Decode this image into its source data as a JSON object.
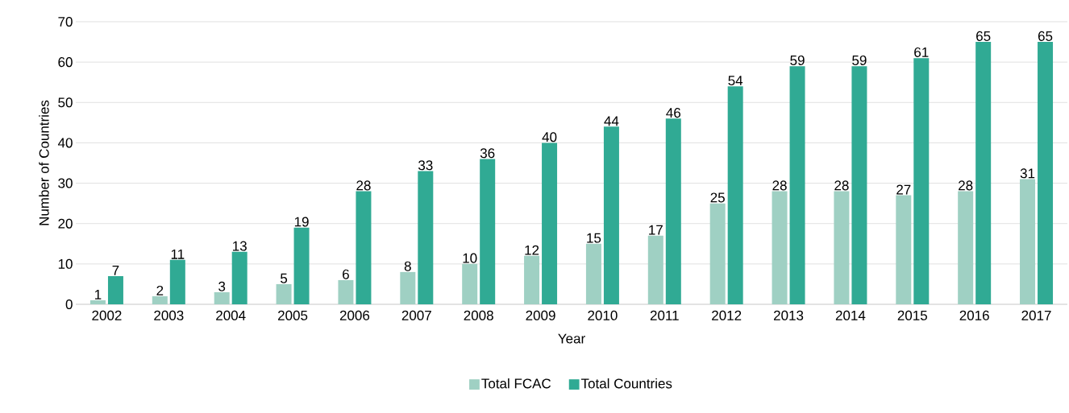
{
  "chart_data": {
    "type": "bar",
    "xlabel": "Year",
    "ylabel": "Number of Countries",
    "categories": [
      "2002",
      "2003",
      "2004",
      "2005",
      "2006",
      "2007",
      "2008",
      "2009",
      "2010",
      "2011",
      "2012",
      "2013",
      "2014",
      "2015",
      "2016",
      "2017"
    ],
    "series": [
      {
        "name": "Total FCAC",
        "color": "#9fd0c3",
        "values": [
          1,
          2,
          3,
          5,
          6,
          8,
          10,
          12,
          15,
          17,
          25,
          28,
          28,
          27,
          28,
          31
        ]
      },
      {
        "name": "Total Countries",
        "color": "#30aa94",
        "values": [
          7,
          11,
          13,
          19,
          28,
          33,
          36,
          40,
          44,
          46,
          54,
          59,
          59,
          61,
          65,
          65
        ]
      }
    ],
    "ylim": [
      0,
      70
    ],
    "yticks": [
      0,
      10,
      20,
      30,
      40,
      50,
      60,
      70
    ],
    "grid": "y",
    "legend": "bottom",
    "data_labels": true
  }
}
